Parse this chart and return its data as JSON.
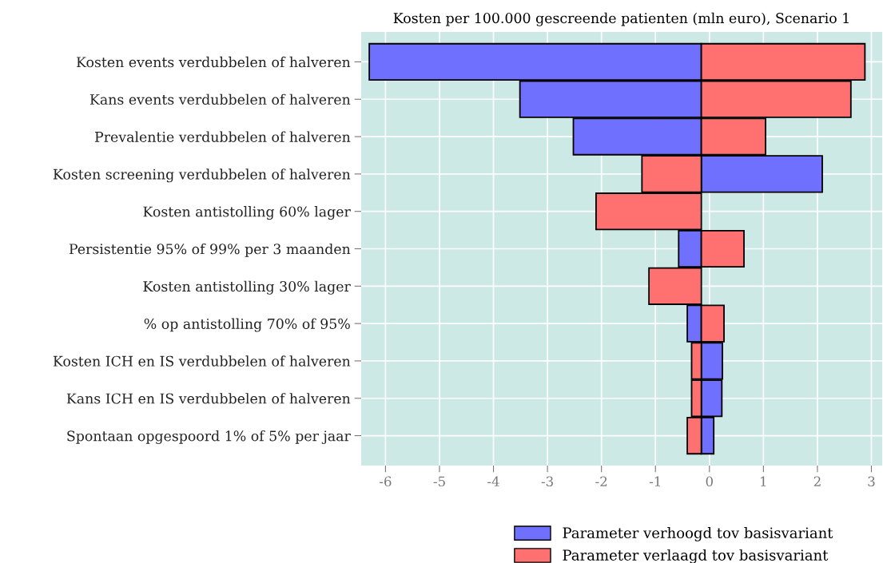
{
  "chart_data": {
    "type": "bar",
    "orientation": "horizontal",
    "title": "Kosten per 100.000 gescreende patienten (mln euro), Scenario 1",
    "categories": [
      "Kosten events verdubbelen of halveren",
      "Kans events verdubbelen of halveren",
      "Prevalentie verdubbelen of halveren",
      "Kosten screening verdubbelen of halveren",
      "Kosten antistolling 60% lager",
      "Persistentie 95% of 99% per 3 maanden",
      "Kosten antistolling 30% lager",
      "% op antistolling 70% of 95%",
      "Kosten ICH en IS verdubbelen of halveren",
      "Kans ICH en IS verdubbelen of halveren",
      "Spontaan opgespoord 1% of 5% per jaar"
    ],
    "series": [
      {
        "name": "Parameter verhoogd tov basisvariant",
        "color": "#7070ff",
        "base": [
          -0.15,
          -0.15,
          -0.15,
          -0.15,
          null,
          -0.15,
          null,
          -0.15,
          -0.15,
          -0.15,
          -0.15
        ],
        "values": [
          -6.15,
          -3.36,
          -2.37,
          2.24,
          null,
          -0.42,
          null,
          -0.26,
          0.39,
          0.38,
          0.23
        ]
      },
      {
        "name": "Parameter verlaagd tov basisvariant",
        "color": "#ff7070",
        "base": [
          -0.15,
          -0.15,
          -0.15,
          -0.15,
          -0.15,
          -0.15,
          -0.15,
          -0.15,
          -0.15,
          -0.15,
          -0.15
        ],
        "values": [
          3.03,
          2.77,
          1.19,
          -1.1,
          -1.95,
          0.79,
          -0.97,
          0.42,
          -0.18,
          -0.18,
          -0.26
        ]
      }
    ],
    "xlim": [
      -6.45,
      3.2
    ],
    "xticks": [
      -6,
      -5,
      -4,
      -3,
      -2,
      -1,
      0,
      1,
      2,
      3
    ],
    "grid": true,
    "legend": "bottom"
  }
}
